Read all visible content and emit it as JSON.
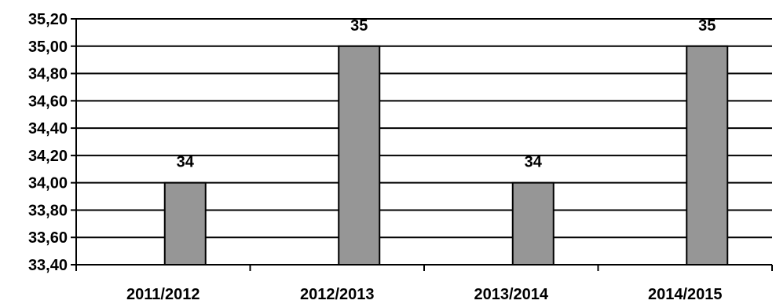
{
  "chart_data": {
    "type": "bar",
    "title": "",
    "xlabel": "",
    "ylabel": "",
    "categories": [
      "2011/2012",
      "2012/2013",
      "2013/2014",
      "2014/2015"
    ],
    "values": [
      34,
      35,
      34,
      35
    ],
    "data_labels": [
      "34",
      "35",
      "34",
      "35"
    ],
    "ylim": [
      33.4,
      35.2
    ],
    "yticks": [
      33.4,
      33.6,
      33.8,
      34.0,
      34.2,
      34.4,
      34.6,
      34.8,
      35.0,
      35.2
    ],
    "ytick_labels": [
      "33,40",
      "33,60",
      "33,80",
      "34,00",
      "34,20",
      "34,40",
      "34,60",
      "34,80",
      "35,00",
      "35,20"
    ],
    "grid": true,
    "legend": "none",
    "colors": {
      "bar_fill": "#969696",
      "bar_stroke": "#000000",
      "grid": "#000000",
      "axis": "#000000"
    }
  }
}
